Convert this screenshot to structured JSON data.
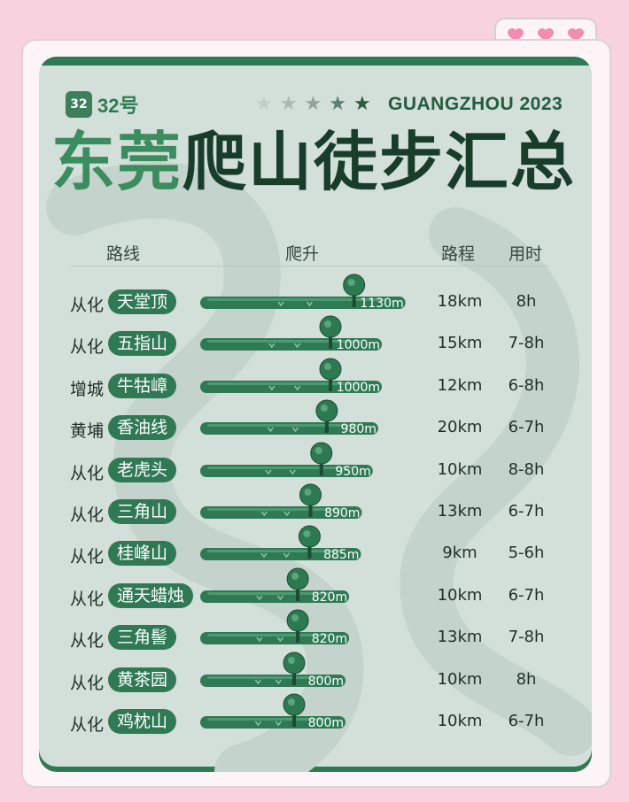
{
  "brand": {
    "logo_text": "32",
    "name": "32号"
  },
  "header": {
    "stars": [
      {
        "icon": "star-icon",
        "color": "#c3cdc7"
      },
      {
        "icon": "star-icon",
        "color": "#a9b8b0"
      },
      {
        "icon": "star-icon",
        "color": "#8fa398"
      },
      {
        "icon": "star-icon",
        "color": "#5e7f6d"
      },
      {
        "icon": "star-icon",
        "color": "#2e5a44"
      }
    ],
    "city": "GUANGZHOU 2023",
    "title_part1": "东莞",
    "title_part2": "爬山徒步汇总"
  },
  "columns": {
    "route": "路线",
    "climb": "爬升",
    "distance": "路程",
    "time": "用时"
  },
  "colors": {
    "accent": "#2f7a55",
    "dark": "#183d2b",
    "panel": "#d3dfd9",
    "pink": "#f8d3df",
    "heart": "#f08db0"
  },
  "chart_data": {
    "type": "bar",
    "orientation": "horizontal",
    "categories": [
      "天堂顶",
      "五指山",
      "牛牯嶂",
      "香油线",
      "老虎头",
      "三角山",
      "桂峰山",
      "通天蜡烛",
      "三角髻",
      "黄茶园",
      "鸡枕山"
    ],
    "series": [
      {
        "values": [
          1130,
          1000,
          1000,
          980,
          950,
          890,
          885,
          820,
          820,
          800,
          800
        ]
      }
    ],
    "unit": "m"
  },
  "rows": [
    {
      "district": "从化",
      "route": "天堂顶",
      "climb": "1130m",
      "distance": "18km",
      "time": "8h"
    },
    {
      "district": "从化",
      "route": "五指山",
      "climb": "1000m",
      "distance": "15km",
      "time": "7-8h"
    },
    {
      "district": "增城",
      "route": "牛牯嶂",
      "climb": "1000m",
      "distance": "12km",
      "time": "6-8h"
    },
    {
      "district": "黄埔",
      "route": "香油线",
      "climb": "980m",
      "distance": "20km",
      "time": "6-7h"
    },
    {
      "district": "从化",
      "route": "老虎头",
      "climb": "950m",
      "distance": "10km",
      "time": "8-8h"
    },
    {
      "district": "从化",
      "route": "三角山",
      "climb": "890m",
      "distance": "13km",
      "time": "6-7h"
    },
    {
      "district": "从化",
      "route": "桂峰山",
      "climb": "885m",
      "distance": "9km",
      "time": "5-6h"
    },
    {
      "district": "从化",
      "route": "通天蜡烛",
      "climb": "820m",
      "distance": "10km",
      "time": "6-7h"
    },
    {
      "district": "从化",
      "route": "三角髻",
      "climb": "820m",
      "distance": "13km",
      "time": "7-8h"
    },
    {
      "district": "从化",
      "route": "黄茶园",
      "climb": "800m",
      "distance": "10km",
      "time": "8h"
    },
    {
      "district": "从化",
      "route": "鸡枕山",
      "climb": "800m",
      "distance": "10km",
      "time": "6-7h"
    }
  ]
}
